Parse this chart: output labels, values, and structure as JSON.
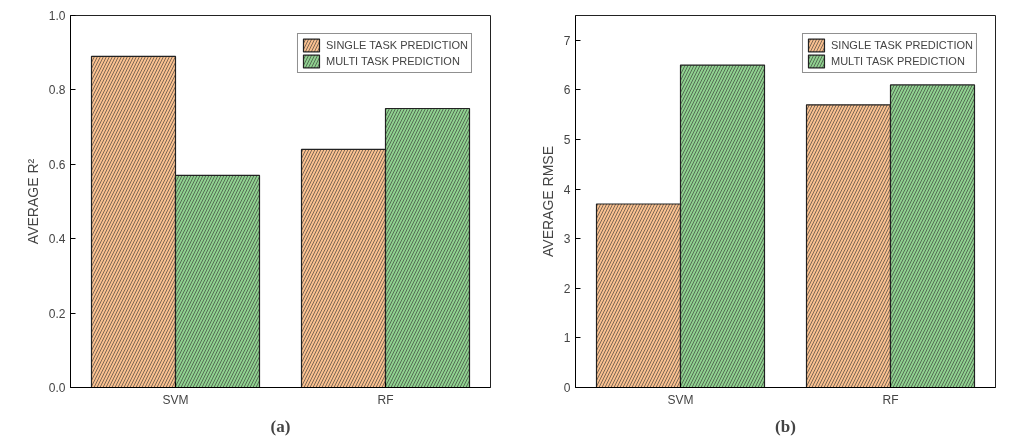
{
  "chart_data": [
    {
      "type": "bar",
      "ylabel": "AVERAGE R²",
      "categories": [
        "SVM",
        "RF"
      ],
      "series": [
        {
          "name": "SINGLE TASK PREDICTION",
          "color": "#f9c08f",
          "values": [
            0.89,
            0.64
          ]
        },
        {
          "name": "MULTI TASK PREDICTION",
          "color": "#8fd18f",
          "values": [
            0.57,
            0.75
          ]
        }
      ],
      "ylim": [
        0,
        1
      ],
      "yticks": [
        {
          "value": 0,
          "label": "0.0"
        },
        0.2,
        0.4,
        0.6,
        0.8,
        {
          "value": 1,
          "label": "1.0"
        }
      ],
      "legend": "top right",
      "grid": false,
      "annotations": [
        "(a)"
      ]
    },
    {
      "type": "bar",
      "ylabel": "AVERAGE RMSE",
      "categories": [
        "SVM",
        "RF"
      ],
      "series": [
        {
          "name": "SINGLE TASK PREDICTION",
          "color": "#f9c08f",
          "values": [
            3.7,
            5.7
          ]
        },
        {
          "name": "MULTI TASK PREDICTION",
          "color": "#8fd18f",
          "values": [
            6.5,
            6.1
          ]
        }
      ],
      "ylim": [
        0,
        7.5
      ],
      "yticks": [
        0,
        1,
        2,
        3,
        4,
        5,
        6,
        7
      ],
      "legend": "top right",
      "grid": false,
      "annotations": [
        "(b)"
      ]
    }
  ]
}
